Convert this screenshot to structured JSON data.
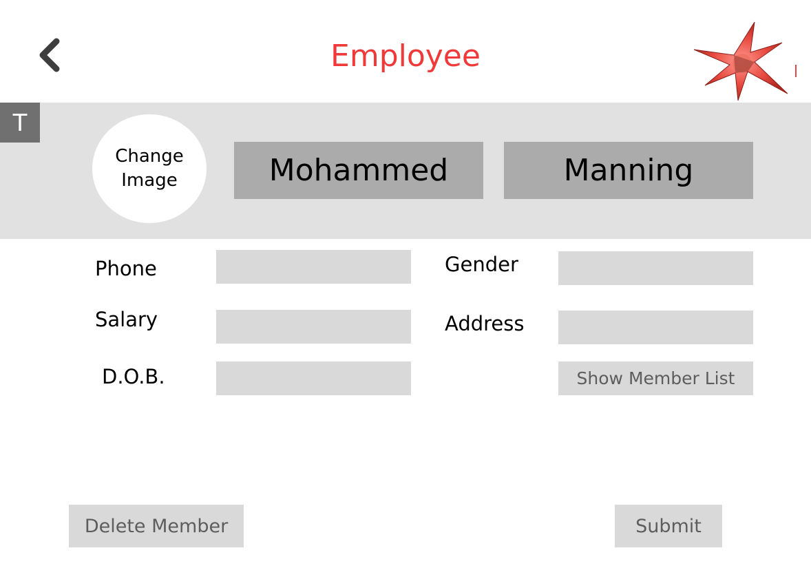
{
  "header": {
    "title": "Employee",
    "title_color": "#f03a3a",
    "back_icon": "chevron-left-icon",
    "logo_icon": "red-starburst-logo-icon"
  },
  "profile": {
    "badge": "T",
    "change_image": "Change\nImage",
    "first_name": "Mohammed",
    "last_name": "Manning"
  },
  "form": {
    "phone_label": "Phone",
    "phone_value": "",
    "salary_label": "Salary",
    "salary_value": "",
    "dob_label": "D.O.B.",
    "dob_value": "",
    "gender_label": "Gender",
    "gender_value": "",
    "address_label": "Address",
    "address_value": "",
    "show_member_list": "Show Member List"
  },
  "actions": {
    "delete_label": "Delete Member",
    "submit_label": "Submit"
  }
}
